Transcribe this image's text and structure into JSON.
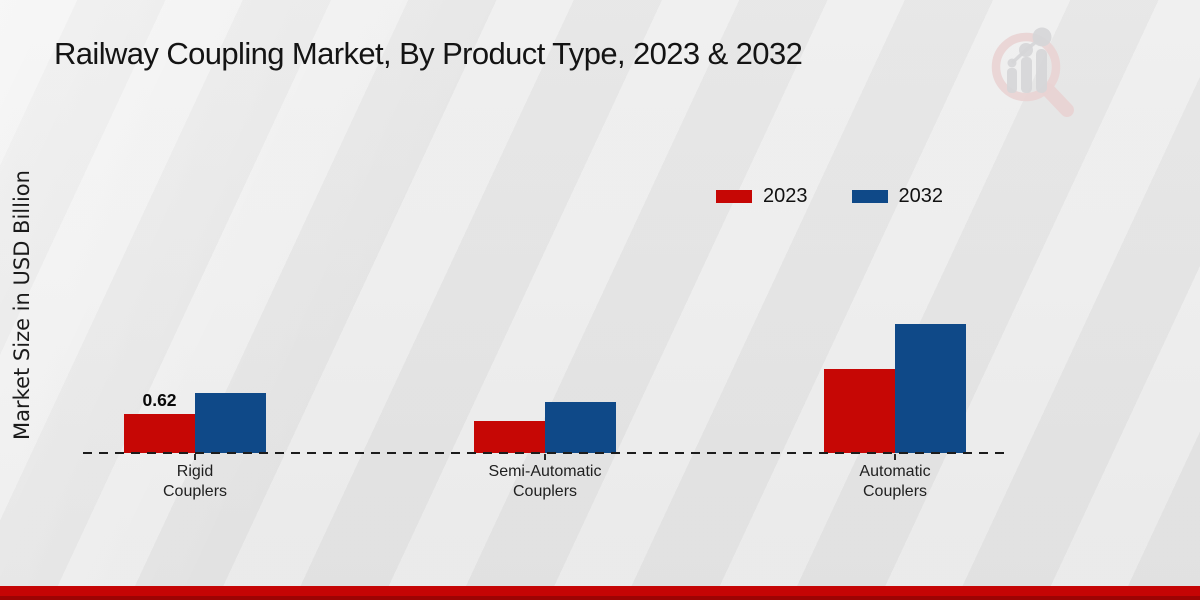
{
  "header": {
    "title": "Railway Coupling Market, By Product Type, 2023 & 2032"
  },
  "chart_data": {
    "type": "bar",
    "title": "Railway Coupling Market, By Product Type, 2023 & 2032",
    "xlabel": "",
    "ylabel": "Market Size in USD Billion",
    "units": "USD Billion",
    "categories": [
      "Rigid\nCouplers",
      "Semi-Automatic\nCouplers",
      "Automatic\nCouplers"
    ],
    "series": [
      {
        "name": "2023",
        "color": "#c60705",
        "values": [
          0.62,
          0.51,
          1.34
        ],
        "value_labels": [
          "0.62",
          "",
          ""
        ]
      },
      {
        "name": "2032",
        "color": "#0f4988",
        "values": [
          0.95,
          0.81,
          2.05
        ],
        "value_labels": [
          "",
          "",
          ""
        ]
      }
    ],
    "ylim": [
      0,
      2.2
    ],
    "grid": false,
    "legend_position": "top-right",
    "baseline_style": "dashed"
  },
  "icons": {
    "watermark": "magnifier-bar-chart-logo"
  },
  "colors": {
    "accent_red": "#c50505",
    "background": "#e9e9e9",
    "baseline": "#1c1c1c"
  }
}
